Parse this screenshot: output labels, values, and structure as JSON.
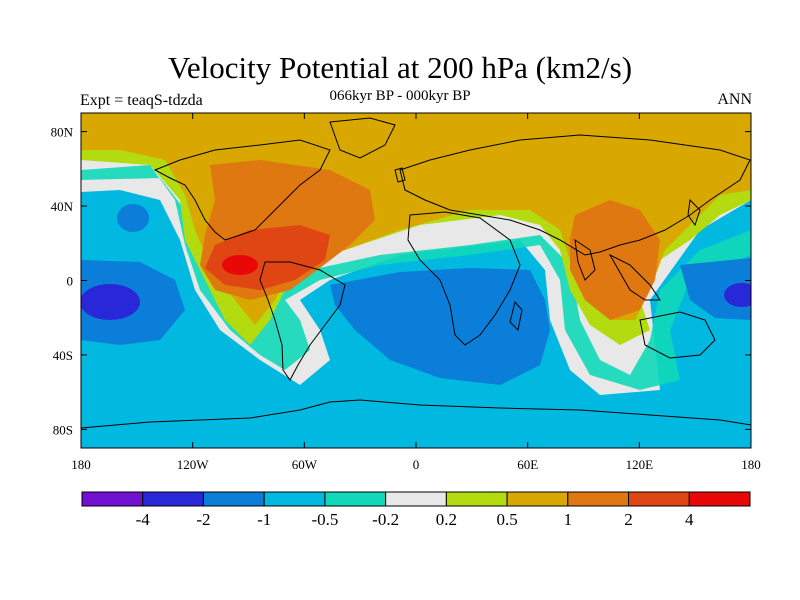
{
  "header": {
    "title": "Velocity Potential at 200 hPa (km2/s)",
    "subtitle": "066kyr BP - 000kyr BP",
    "left_label": "Expt = teaqS-tdzda",
    "right_label": "ANN"
  },
  "map": {
    "lon_range": [
      -180,
      180
    ],
    "lat_range": [
      -90,
      90
    ],
    "lon_ticks": [
      "180",
      "120W",
      "60W",
      "0",
      "60E",
      "120E",
      "180"
    ],
    "lat_ticks": [
      "80N",
      "40N",
      "0",
      "40S",
      "80S"
    ]
  },
  "colorbar": {
    "colors": [
      "#7010d0",
      "#2828d8",
      "#0a7ed8",
      "#00b8e0",
      "#10d8b8",
      "#e8e8e8",
      "#b4da10",
      "#d8a800",
      "#e07812",
      "#e04614",
      "#e80808"
    ],
    "labels": [
      "-4",
      "-2",
      "-1",
      "-0.5",
      "-0.2",
      "0.2",
      "0.5",
      "1",
      "2",
      "4"
    ]
  }
}
